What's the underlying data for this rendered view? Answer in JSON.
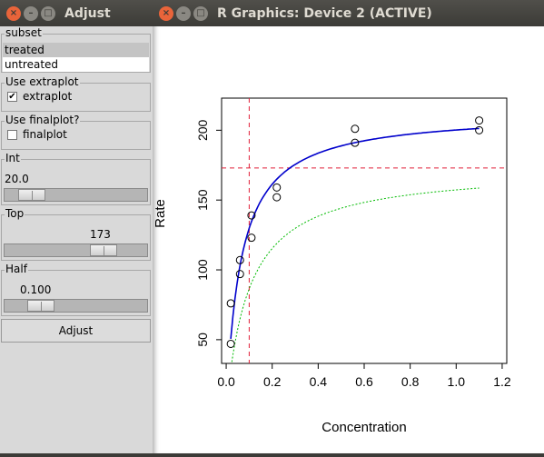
{
  "left_window": {
    "title": "Adjust",
    "subset": {
      "label": "subset",
      "items": [
        "treated",
        "untreated"
      ],
      "selected": "treated"
    },
    "extraplot": {
      "label": "Use extraplot",
      "checkbox_label": "extraplot",
      "checked": true,
      "check_mark": "✔"
    },
    "finalplot": {
      "label": "Use finalplot?",
      "checkbox_label": "finalplot",
      "checked": false
    },
    "int": {
      "label": "Int",
      "value": "20.0",
      "fraction": 0.12
    },
    "top": {
      "label": "Top",
      "value": "173",
      "fraction": 0.74
    },
    "half": {
      "label": "Half",
      "value": "0.100",
      "fraction": 0.2
    },
    "adjust_button": "Adjust"
  },
  "right_window": {
    "title": "R Graphics: Device 2 (ACTIVE)"
  },
  "window_buttons": {
    "close": "×",
    "minimize": "–",
    "maximize": "□"
  },
  "chart_data": {
    "type": "scatter",
    "xlabel": "Concentration",
    "ylabel": "Rate",
    "xlim": [
      -0.02,
      1.22
    ],
    "ylim": [
      33,
      223
    ],
    "xticks": [
      0.0,
      0.2,
      0.4,
      0.6,
      0.8,
      1.0,
      1.2
    ],
    "xtick_labels": [
      "0.0",
      "0.2",
      "0.4",
      "0.6",
      "0.8",
      "1.0",
      "1.2"
    ],
    "yticks": [
      50,
      100,
      150,
      200
    ],
    "ytick_labels": [
      "50",
      "100",
      "150",
      "200"
    ],
    "points": [
      {
        "x": 0.02,
        "y": 76
      },
      {
        "x": 0.02,
        "y": 47
      },
      {
        "x": 0.06,
        "y": 97
      },
      {
        "x": 0.06,
        "y": 107
      },
      {
        "x": 0.11,
        "y": 123
      },
      {
        "x": 0.11,
        "y": 139
      },
      {
        "x": 0.22,
        "y": 159
      },
      {
        "x": 0.22,
        "y": 152
      },
      {
        "x": 0.56,
        "y": 191
      },
      {
        "x": 0.56,
        "y": 201
      },
      {
        "x": 1.1,
        "y": 207
      },
      {
        "x": 1.1,
        "y": 200
      }
    ],
    "fit_curve": {
      "vmax": 213,
      "k": 0.0641,
      "color": "#0000cc"
    },
    "extra_curve": {
      "vmax": 173,
      "k": 0.1,
      "color": "#00bb00"
    },
    "vline": {
      "x": 0.1,
      "color": "#e0203a"
    },
    "hline": {
      "y": 173,
      "color": "#e0203a"
    },
    "grid": false,
    "legend": "none"
  }
}
